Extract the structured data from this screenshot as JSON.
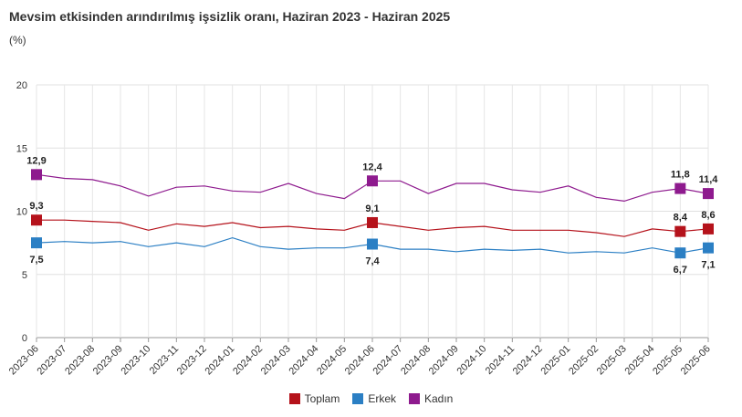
{
  "chart_data": {
    "type": "line",
    "title": "Mevsim etkisinden arındırılmış işsizlik oranı, Haziran 2023 - Haziran 2025",
    "unit": "(%)",
    "ylim": [
      0,
      20
    ],
    "yticks": [
      "0",
      "5",
      "10",
      "15",
      "20"
    ],
    "categories": [
      "2023-06",
      "2023-07",
      "2023-08",
      "2023-09",
      "2023-10",
      "2023-11",
      "2023-12",
      "2024-01",
      "2024-02",
      "2024-03",
      "2024-04",
      "2024-05",
      "2024-06",
      "2024-07",
      "2024-08",
      "2024-09",
      "2024-10",
      "2024-11",
      "2024-12",
      "2025-01",
      "2025-02",
      "2025-03",
      "2025-04",
      "2025-05",
      "2025-06"
    ],
    "series": [
      {
        "name": "Toplam",
        "color": "#b5121b",
        "values": [
          9.3,
          9.3,
          9.2,
          9.1,
          8.5,
          9.0,
          8.8,
          9.1,
          8.7,
          8.8,
          8.6,
          8.5,
          9.1,
          8.8,
          8.5,
          8.7,
          8.8,
          8.5,
          8.5,
          8.5,
          8.3,
          8.0,
          8.6,
          8.4,
          8.6
        ],
        "markers": [
          {
            "index": 0,
            "label": "9,3",
            "pos": "above"
          },
          {
            "index": 12,
            "label": "9,1",
            "pos": "above"
          },
          {
            "index": 23,
            "label": "8,4",
            "pos": "above"
          },
          {
            "index": 24,
            "label": "8,6",
            "pos": "above"
          }
        ]
      },
      {
        "name": "Erkek",
        "color": "#2b7fc4",
        "values": [
          7.5,
          7.6,
          7.5,
          7.6,
          7.2,
          7.5,
          7.2,
          7.9,
          7.2,
          7.0,
          7.1,
          7.1,
          7.4,
          7.0,
          7.0,
          6.8,
          7.0,
          6.9,
          7.0,
          6.7,
          6.8,
          6.7,
          7.1,
          6.7,
          7.1
        ],
        "markers": [
          {
            "index": 0,
            "label": "7,5",
            "pos": "below"
          },
          {
            "index": 12,
            "label": "7,4",
            "pos": "below"
          },
          {
            "index": 23,
            "label": "6,7",
            "pos": "below"
          },
          {
            "index": 24,
            "label": "7,1",
            "pos": "below"
          }
        ]
      },
      {
        "name": "Kadın",
        "color": "#8e1a8e",
        "values": [
          12.9,
          12.6,
          12.5,
          12.0,
          11.2,
          11.9,
          12.0,
          11.6,
          11.5,
          12.2,
          11.4,
          11.0,
          12.4,
          12.4,
          11.4,
          12.2,
          12.2,
          11.7,
          11.5,
          12.0,
          11.1,
          10.8,
          11.5,
          11.8,
          11.4
        ],
        "markers": [
          {
            "index": 0,
            "label": "12,9",
            "pos": "above"
          },
          {
            "index": 12,
            "label": "12,4",
            "pos": "above"
          },
          {
            "index": 23,
            "label": "11,8",
            "pos": "above"
          },
          {
            "index": 24,
            "label": "11,4",
            "pos": "above"
          }
        ]
      }
    ],
    "legend": "bottom-center",
    "grid": true
  }
}
